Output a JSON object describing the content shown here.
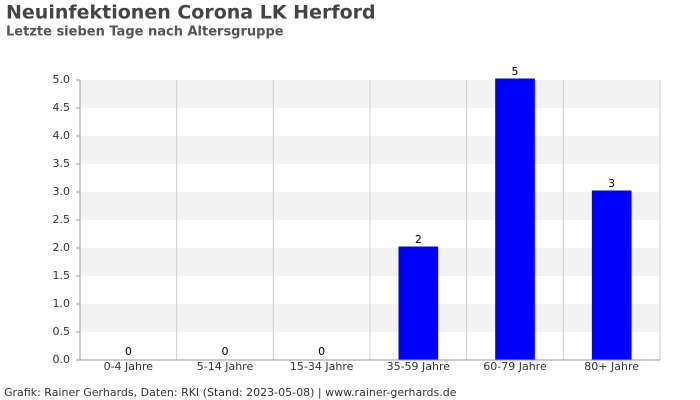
{
  "chart_data": {
    "type": "bar",
    "title": "Neuinfektionen Corona LK Herford",
    "subtitle": "Letzte sieben Tage nach Altersgruppe",
    "categories": [
      "0-4 Jahre",
      "5-14 Jahre",
      "15-34 Jahre",
      "35-59 Jahre",
      "60-79 Jahre",
      "80+ Jahre"
    ],
    "values": [
      0,
      0,
      0,
      2,
      5,
      3
    ],
    "color": "#0000ff",
    "ylim": [
      0,
      5
    ],
    "yticks": [
      {
        "value": 0,
        "label": "0.0"
      },
      {
        "value": 0.5,
        "label": "0.5"
      },
      {
        "value": 1,
        "label": "1.0"
      },
      {
        "value": 1.5,
        "label": "1.5"
      },
      {
        "value": 2,
        "label": "2.0"
      },
      {
        "value": 2.5,
        "label": "2.5"
      },
      {
        "value": 3,
        "label": "3.0"
      },
      {
        "value": 3.5,
        "label": "3.5"
      },
      {
        "value": 4,
        "label": "4.0"
      },
      {
        "value": 4.5,
        "label": "4.5"
      },
      {
        "value": 5,
        "label": "5.0"
      }
    ],
    "footer": "Grafik: Rainer Gerhards, Daten: RKI (Stand: 2023-05-08) | www.rainer-gerhards.de"
  }
}
